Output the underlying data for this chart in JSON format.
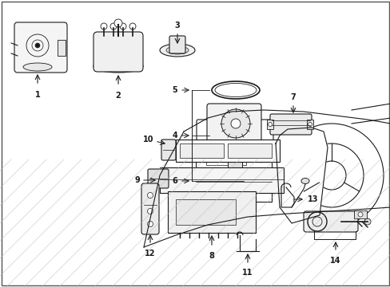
{
  "bg_color": "#ffffff",
  "line_color": "#1a1a1a",
  "fig_width": 4.89,
  "fig_height": 3.6,
  "dpi": 100,
  "border_color": "#333333",
  "gray": "#888888",
  "light_gray": "#cccccc"
}
